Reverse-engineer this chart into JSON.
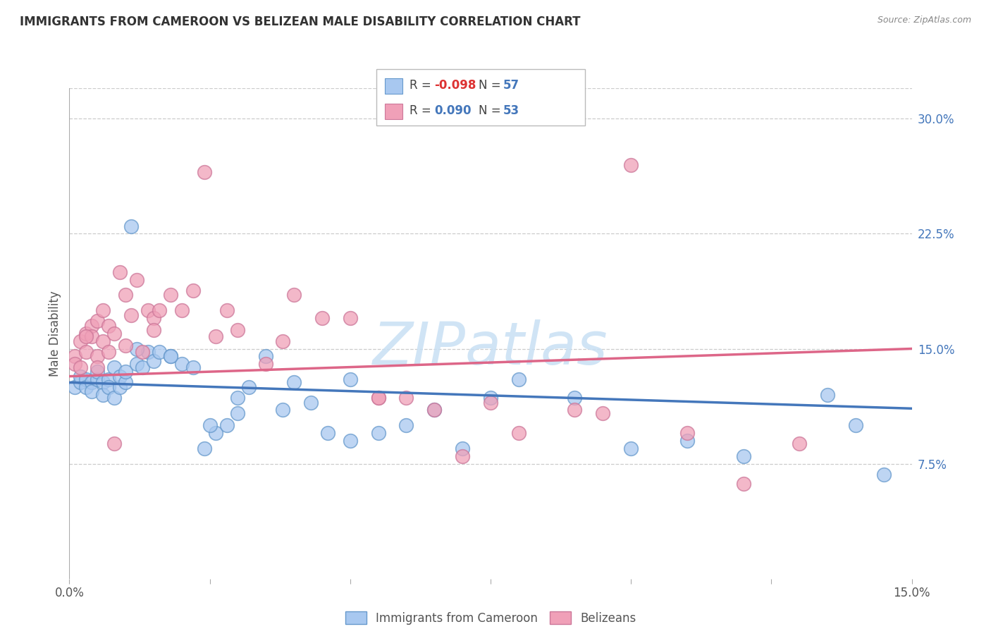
{
  "title": "IMMIGRANTS FROM CAMEROON VS BELIZEAN MALE DISABILITY CORRELATION CHART",
  "source": "Source: ZipAtlas.com",
  "ylabel": "Male Disability",
  "legend_label1": "Immigrants from Cameroon",
  "legend_label2": "Belizeans",
  "r1": "-0.098",
  "n1": "57",
  "r2": "0.090",
  "n2": "53",
  "color_blue_fill": "#A8C8F0",
  "color_blue_edge": "#6699CC",
  "color_pink_fill": "#F0A0B8",
  "color_pink_edge": "#CC7799",
  "color_trendline_blue": "#4477BB",
  "color_trendline_pink": "#DD6688",
  "watermark": "ZIPatlas",
  "xlim": [
    0.0,
    0.15
  ],
  "ylim": [
    0.0,
    0.32
  ],
  "yticks": [
    0.075,
    0.15,
    0.225,
    0.3
  ],
  "ytick_labels": [
    "7.5%",
    "15.0%",
    "22.5%",
    "30.0%"
  ],
  "blue_scatter_x": [
    0.001,
    0.002,
    0.002,
    0.003,
    0.003,
    0.004,
    0.004,
    0.005,
    0.005,
    0.006,
    0.006,
    0.007,
    0.007,
    0.008,
    0.008,
    0.009,
    0.009,
    0.01,
    0.01,
    0.011,
    0.012,
    0.013,
    0.014,
    0.015,
    0.016,
    0.018,
    0.02,
    0.022,
    0.024,
    0.026,
    0.028,
    0.03,
    0.032,
    0.035,
    0.038,
    0.04,
    0.043,
    0.046,
    0.05,
    0.055,
    0.06,
    0.065,
    0.07,
    0.075,
    0.08,
    0.09,
    0.1,
    0.11,
    0.12,
    0.135,
    0.14,
    0.145,
    0.05,
    0.03,
    0.025,
    0.018,
    0.012
  ],
  "blue_scatter_y": [
    0.125,
    0.128,
    0.132,
    0.13,
    0.125,
    0.128,
    0.122,
    0.13,
    0.135,
    0.128,
    0.12,
    0.13,
    0.125,
    0.138,
    0.118,
    0.125,
    0.132,
    0.128,
    0.135,
    0.23,
    0.14,
    0.138,
    0.148,
    0.142,
    0.148,
    0.145,
    0.14,
    0.138,
    0.085,
    0.095,
    0.1,
    0.118,
    0.125,
    0.145,
    0.11,
    0.128,
    0.115,
    0.095,
    0.09,
    0.095,
    0.1,
    0.11,
    0.085,
    0.118,
    0.13,
    0.118,
    0.085,
    0.09,
    0.08,
    0.12,
    0.1,
    0.068,
    0.13,
    0.108,
    0.1,
    0.145,
    0.15
  ],
  "pink_scatter_x": [
    0.001,
    0.001,
    0.002,
    0.002,
    0.003,
    0.003,
    0.004,
    0.004,
    0.005,
    0.005,
    0.006,
    0.006,
    0.007,
    0.008,
    0.009,
    0.01,
    0.011,
    0.012,
    0.013,
    0.014,
    0.015,
    0.016,
    0.018,
    0.02,
    0.022,
    0.024,
    0.026,
    0.03,
    0.035,
    0.038,
    0.04,
    0.045,
    0.05,
    0.055,
    0.06,
    0.065,
    0.07,
    0.075,
    0.08,
    0.09,
    0.095,
    0.1,
    0.11,
    0.12,
    0.13,
    0.055,
    0.028,
    0.015,
    0.01,
    0.007,
    0.005,
    0.003,
    0.008
  ],
  "pink_scatter_y": [
    0.145,
    0.14,
    0.138,
    0.155,
    0.148,
    0.16,
    0.165,
    0.158,
    0.145,
    0.168,
    0.155,
    0.175,
    0.165,
    0.16,
    0.2,
    0.185,
    0.172,
    0.195,
    0.148,
    0.175,
    0.17,
    0.175,
    0.185,
    0.175,
    0.188,
    0.265,
    0.158,
    0.162,
    0.14,
    0.155,
    0.185,
    0.17,
    0.17,
    0.118,
    0.118,
    0.11,
    0.08,
    0.115,
    0.095,
    0.11,
    0.108,
    0.27,
    0.095,
    0.062,
    0.088,
    0.118,
    0.175,
    0.162,
    0.152,
    0.148,
    0.138,
    0.158,
    0.088
  ],
  "blue_line_x": [
    0.0,
    0.15
  ],
  "blue_line_y": [
    0.128,
    0.111
  ],
  "pink_line_x": [
    0.0,
    0.15
  ],
  "pink_line_y": [
    0.132,
    0.15
  ]
}
